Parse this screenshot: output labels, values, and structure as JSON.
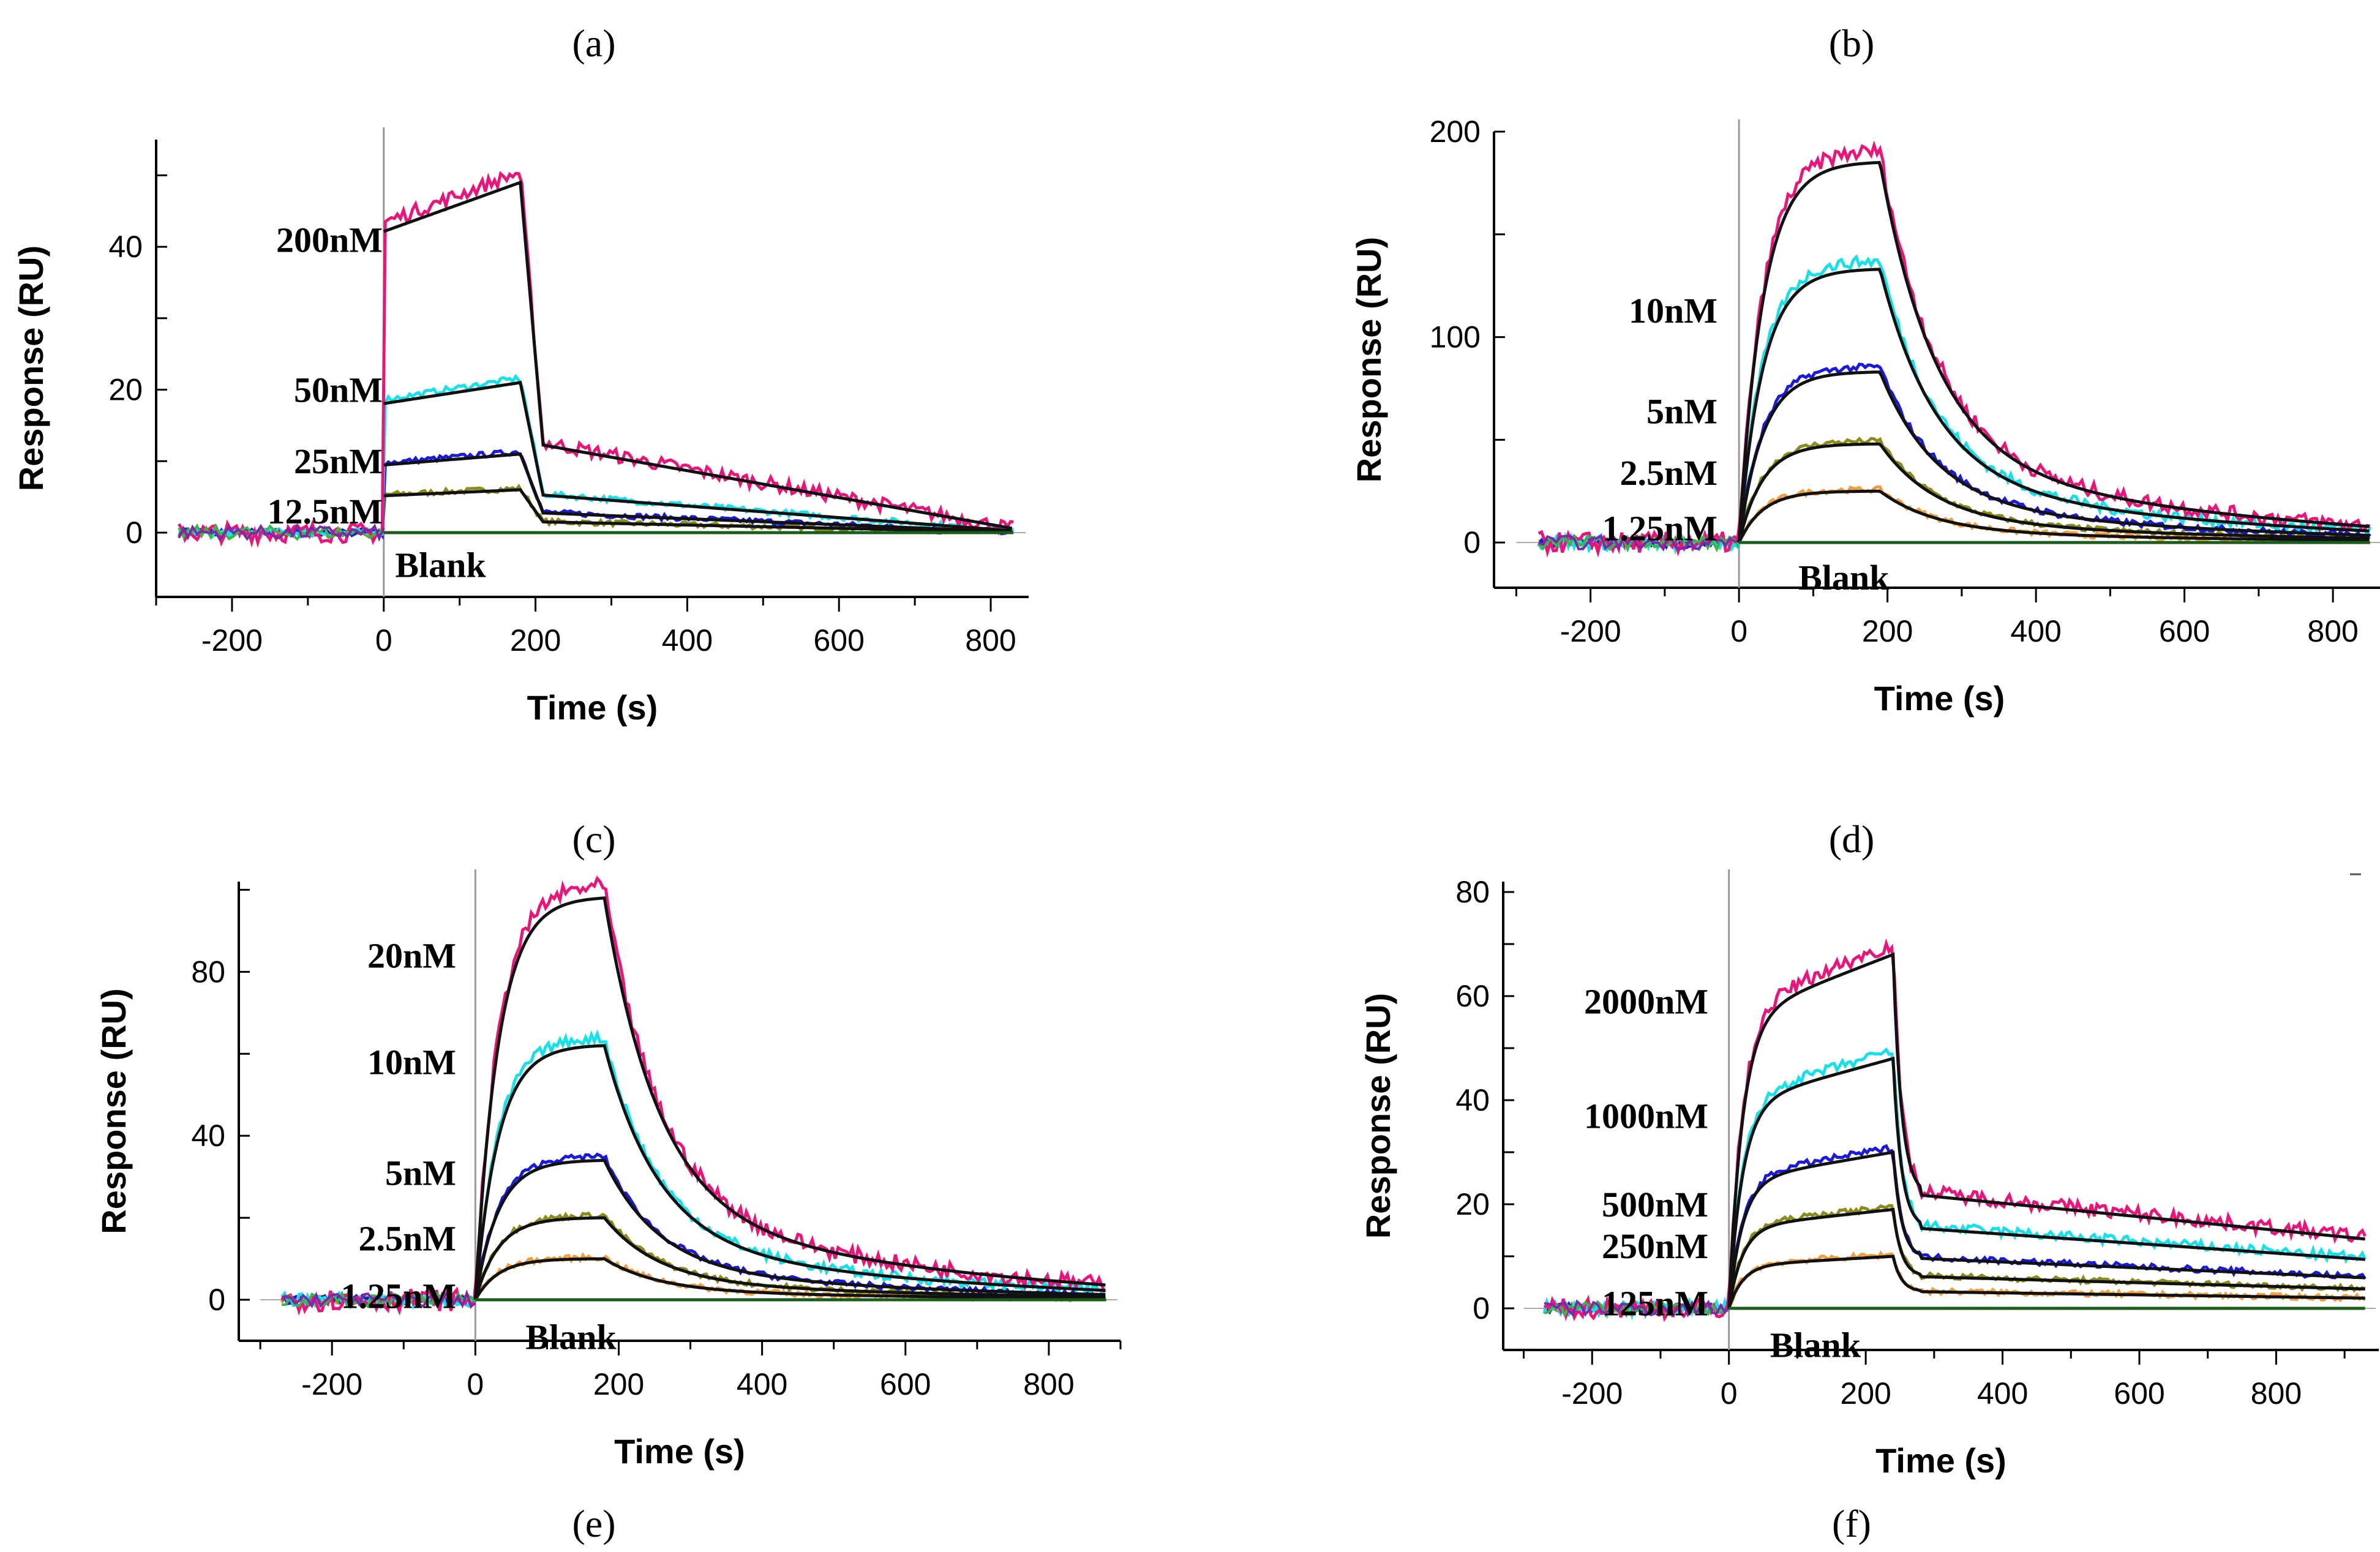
{
  "figure_labels": [
    "(a)",
    "(b)",
    "(c)",
    "(d)",
    "(e)",
    "(f)"
  ],
  "colors": {
    "axis": "#000000",
    "fit": "#111111",
    "zero": "#1a5c1a",
    "injection": "#9a9a9a",
    "series": [
      "#e8157a",
      "#18e0e8",
      "#1a1ad8",
      "#8c8c1e",
      "#f0a040",
      "#3cb44b",
      "#7a2aa8"
    ]
  },
  "chart_data": [
    {
      "type": "line",
      "panel": "(a)",
      "xlabel": "Time (s)",
      "ylabel": "Response (RU)",
      "xlim": [
        -300,
        850
      ],
      "ylim": [
        -9,
        55
      ],
      "xticks": [
        -200,
        0,
        200,
        400,
        600,
        800
      ],
      "yticks": [
        0,
        20,
        40
      ],
      "injection_end": 180,
      "kinetics": "fast",
      "series": [
        {
          "name": "200nM",
          "plateau": 49,
          "residual": 12
        },
        {
          "name": "50nM",
          "plateau": 21,
          "residual": 5
        },
        {
          "name": "25nM",
          "plateau": 11,
          "residual": 3
        },
        {
          "name": "12.5nM",
          "plateau": 6,
          "residual": 2
        }
      ],
      "labels": [
        "200nM",
        "50nM",
        "25nM",
        "12.5nM",
        "Blank"
      ],
      "label_values": [
        41,
        20,
        10,
        3,
        -4.5
      ],
      "blank_x": 15
    },
    {
      "type": "line",
      "panel": "(b)",
      "xlabel": "Time (s)",
      "ylabel": "Response (RU)",
      "xlim": [
        -330,
        870
      ],
      "ylim": [
        -22,
        200
      ],
      "xticks": [
        -200,
        0,
        200,
        400,
        600,
        800
      ],
      "yticks": [
        0,
        100,
        200
      ],
      "injection_end": 190,
      "kinetics": "slow",
      "series": [
        {
          "name": "10nM",
          "plateau": 185
        },
        {
          "name": "",
          "plateau": 133
        },
        {
          "name": "5nM",
          "plateau": 83
        },
        {
          "name": "2.5nM",
          "plateau": 48
        },
        {
          "name": "1.25nM",
          "plateau": 25
        }
      ],
      "labels": [
        "10nM",
        "5nM",
        "2.5nM",
        "1.25nM",
        "Blank"
      ],
      "label_values": [
        113,
        64,
        34,
        7,
        -17
      ],
      "blank_x": 80
    },
    {
      "type": "line",
      "panel": "(c)",
      "xlabel": "Time (s)",
      "ylabel": "Response (RU)",
      "xlim": [
        -330,
        900
      ],
      "ylim": [
        -10,
        102
      ],
      "xticks": [
        -200,
        0,
        200,
        400,
        600,
        800
      ],
      "yticks": [
        0,
        40,
        80
      ],
      "injection_end": 180,
      "kinetics": "slow",
      "series": [
        {
          "name": "20nM",
          "plateau": 98
        },
        {
          "name": "10nM",
          "plateau": 62
        },
        {
          "name": "5nM",
          "plateau": 34
        },
        {
          "name": "2.5nM",
          "plateau": 20
        },
        {
          "name": "1.25nM",
          "plateau": 10
        }
      ],
      "labels": [
        "20nM",
        "10nM",
        "5nM",
        "2.5nM",
        "1.25nM",
        "Blank"
      ],
      "label_values": [
        84,
        58,
        31,
        15,
        1,
        -9
      ],
      "blank_x": 70
    },
    {
      "type": "line",
      "panel": "(d)",
      "xlabel": "Time (s)",
      "ylabel": "Response (RU)",
      "xlim": [
        -330,
        950
      ],
      "ylim": [
        -8,
        82
      ],
      "xticks": [
        -200,
        0,
        200,
        400,
        600,
        800
      ],
      "yticks": [
        0,
        20,
        40,
        60,
        80
      ],
      "injection_end": 240,
      "kinetics": "biphasic",
      "series": [
        {
          "name": "2000nM",
          "plateau": 68,
          "residual": 14
        },
        {
          "name": "1000nM",
          "plateau": 48,
          "residual": 10
        },
        {
          "name": "500nM",
          "plateau": 30,
          "residual": 8
        },
        {
          "name": "250nM",
          "plateau": 19,
          "residual": 5
        },
        {
          "name": "125nM",
          "plateau": 10,
          "residual": 3
        }
      ],
      "labels": [
        "2000nM",
        "1000nM",
        "500nM",
        "250nM",
        "125nM",
        "Blank"
      ],
      "label_values": [
        59,
        37,
        20,
        12,
        1,
        -7
      ],
      "blank_x": 60
    }
  ]
}
